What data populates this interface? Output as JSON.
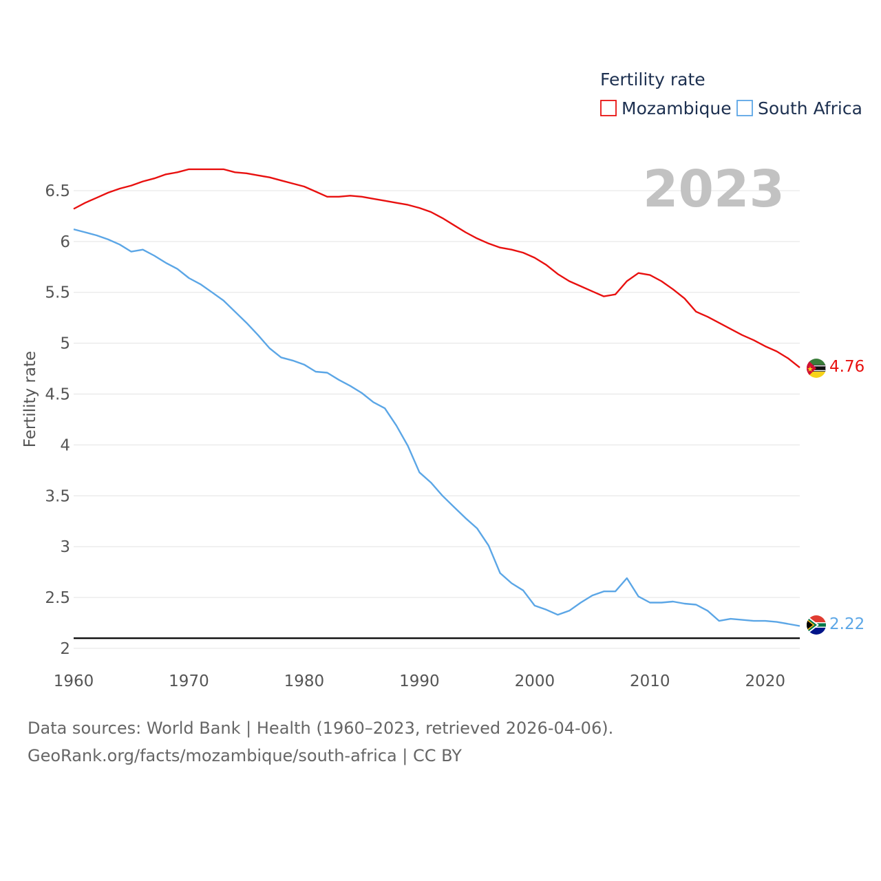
{
  "legend": {
    "title": "Fertility rate",
    "items": [
      {
        "label": "Mozambique",
        "color": "#e8100f"
      },
      {
        "label": "South Africa",
        "color": "#5ba6e6"
      }
    ]
  },
  "year_label": "2023",
  "footer": {
    "line1": "Data sources: World Bank | Health (1960–2023, retrieved 2026-04-06).",
    "line2": "GeoRank.org/facts/mozambique/south-africa | CC BY"
  },
  "chart_data": {
    "type": "line",
    "title": "Fertility rate",
    "xlabel": "",
    "ylabel": "Fertility rate",
    "xlim": [
      1960,
      2023
    ],
    "ylim": [
      2,
      6.7
    ],
    "x_ticks": [
      1960,
      1970,
      1980,
      1990,
      2000,
      2010,
      2020
    ],
    "y_ticks": [
      2,
      2.5,
      3,
      3.5,
      4,
      4.5,
      5,
      5.5,
      6,
      6.5
    ],
    "y_tick_labels": [
      "2",
      "2.5",
      "3",
      "3.5",
      "4",
      "4.5",
      "5",
      "5.5",
      "6",
      "6.5"
    ],
    "reference_line": {
      "value": 2.1,
      "color": "#000000"
    },
    "series": [
      {
        "name": "Mozambique",
        "color": "#e8100f",
        "end_label": "4.76",
        "x": [
          1960,
          1961,
          1962,
          1963,
          1964,
          1965,
          1966,
          1967,
          1968,
          1969,
          1970,
          1971,
          1972,
          1973,
          1974,
          1975,
          1976,
          1977,
          1978,
          1979,
          1980,
          1981,
          1982,
          1983,
          1984,
          1985,
          1986,
          1987,
          1988,
          1989,
          1990,
          1991,
          1992,
          1993,
          1994,
          1995,
          1996,
          1997,
          1998,
          1999,
          2000,
          2001,
          2002,
          2003,
          2004,
          2005,
          2006,
          2007,
          2008,
          2009,
          2010,
          2011,
          2012,
          2013,
          2014,
          2015,
          2016,
          2017,
          2018,
          2019,
          2020,
          2021,
          2022,
          2023
        ],
        "values": [
          6.32,
          6.38,
          6.43,
          6.48,
          6.52,
          6.55,
          6.59,
          6.62,
          6.66,
          6.68,
          6.71,
          6.71,
          6.71,
          6.71,
          6.68,
          6.67,
          6.65,
          6.63,
          6.6,
          6.57,
          6.54,
          6.49,
          6.44,
          6.44,
          6.45,
          6.44,
          6.42,
          6.4,
          6.38,
          6.36,
          6.33,
          6.29,
          6.23,
          6.16,
          6.09,
          6.03,
          5.98,
          5.94,
          5.92,
          5.89,
          5.84,
          5.77,
          5.68,
          5.61,
          5.56,
          5.51,
          5.46,
          5.48,
          5.61,
          5.69,
          5.67,
          5.61,
          5.53,
          5.44,
          5.31,
          5.26,
          5.2,
          5.14,
          5.08,
          5.03,
          4.97,
          4.92,
          4.85,
          4.76
        ]
      },
      {
        "name": "South Africa",
        "color": "#5ba6e6",
        "end_label": "2.22",
        "x": [
          1960,
          1961,
          1962,
          1963,
          1964,
          1965,
          1966,
          1967,
          1968,
          1969,
          1970,
          1971,
          1972,
          1973,
          1974,
          1975,
          1976,
          1977,
          1978,
          1979,
          1980,
          1981,
          1982,
          1983,
          1984,
          1985,
          1986,
          1987,
          1988,
          1989,
          1990,
          1991,
          1992,
          1993,
          1994,
          1995,
          1996,
          1997,
          1998,
          1999,
          2000,
          2001,
          2002,
          2003,
          2004,
          2005,
          2006,
          2007,
          2008,
          2009,
          2010,
          2011,
          2012,
          2013,
          2014,
          2015,
          2016,
          2017,
          2018,
          2019,
          2020,
          2021,
          2022,
          2023
        ],
        "values": [
          6.12,
          6.09,
          6.06,
          6.02,
          5.97,
          5.9,
          5.92,
          5.86,
          5.79,
          5.73,
          5.64,
          5.58,
          5.5,
          5.42,
          5.31,
          5.2,
          5.08,
          4.95,
          4.86,
          4.83,
          4.79,
          4.72,
          4.71,
          4.64,
          4.58,
          4.51,
          4.42,
          4.36,
          4.19,
          3.99,
          3.73,
          3.63,
          3.5,
          3.39,
          3.28,
          3.18,
          3.01,
          2.74,
          2.64,
          2.57,
          2.42,
          2.38,
          2.33,
          2.37,
          2.45,
          2.52,
          2.56,
          2.56,
          2.69,
          2.51,
          2.45,
          2.45,
          2.46,
          2.44,
          2.43,
          2.37,
          2.27,
          2.29,
          2.28,
          2.27,
          2.27,
          2.26,
          2.24,
          2.22
        ]
      }
    ]
  }
}
